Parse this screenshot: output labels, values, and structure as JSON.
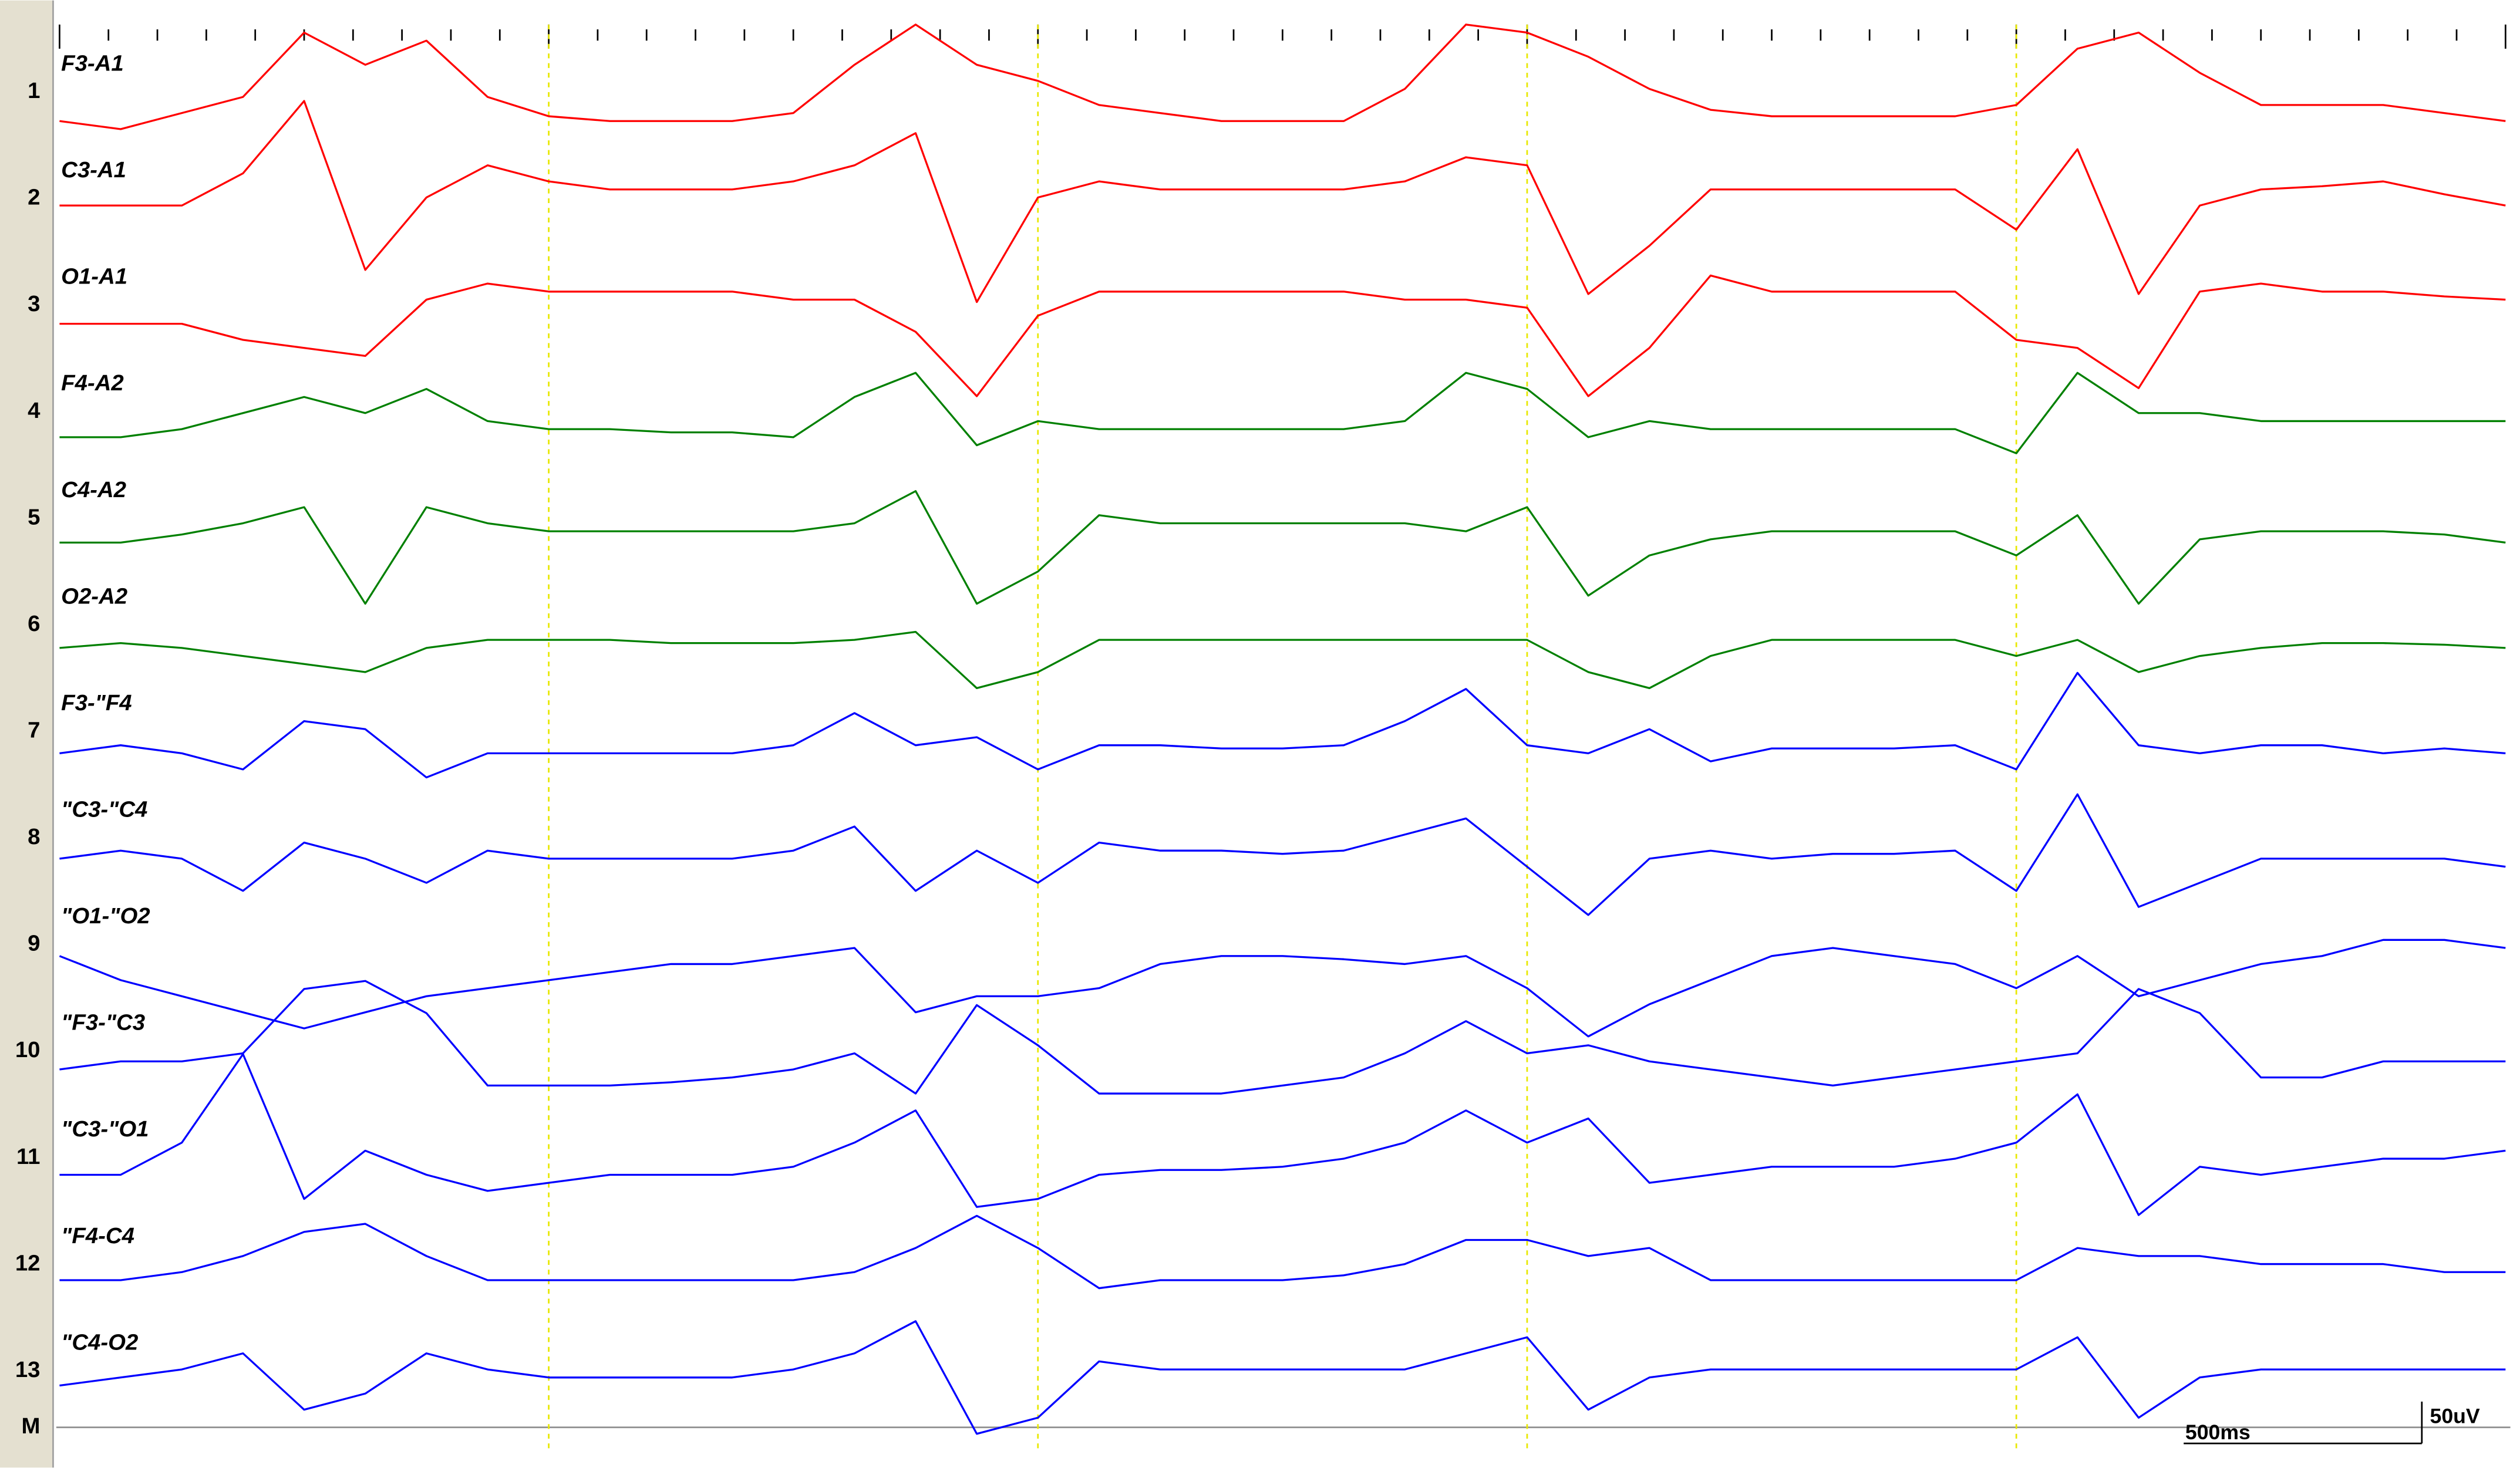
{
  "x": [
    0,
    0.125,
    0.25,
    0.375,
    0.5,
    0.625,
    0.75,
    0.875,
    1,
    1.125,
    1.25,
    1.375,
    1.5,
    1.625,
    1.75,
    1.875,
    2,
    2.125,
    2.25,
    2.375,
    2.5,
    2.625,
    2.75,
    2.875,
    3,
    3.125,
    3.25,
    3.375,
    3.5,
    3.625,
    3.75,
    3.875,
    4,
    4.125,
    4.25,
    4.375,
    4.5,
    4.625,
    4.75,
    4.875,
    5
  ],
  "channels": [
    {
      "number": "1",
      "label": "F3-A1",
      "color": "#ff0000",
      "trace": [
        0,
        -5,
        5,
        15,
        55,
        35,
        50,
        15,
        3,
        0,
        0,
        0,
        5,
        35,
        60,
        35,
        25,
        10,
        5,
        0,
        0,
        0,
        20,
        60,
        55,
        40,
        20,
        7,
        3,
        3,
        3,
        3,
        10,
        45,
        55,
        30,
        10,
        10,
        10,
        5,
        0
      ]
    },
    {
      "number": "2",
      "label": "C3-A1",
      "color": "#ff0000",
      "trace": [
        13,
        13,
        13,
        33,
        78,
        -27,
        18,
        38,
        28,
        23,
        23,
        23,
        28,
        38,
        58,
        -47,
        18,
        28,
        23,
        23,
        23,
        23,
        28,
        43,
        38,
        -42,
        -12,
        23,
        23,
        23,
        23,
        23,
        -2,
        48,
        -42,
        13,
        23,
        25,
        28,
        20,
        13
      ]
    },
    {
      "number": "3",
      "label": "O1-A1",
      "color": "#ff0000",
      "trace": [
        5,
        5,
        5,
        -5,
        -10,
        -15,
        20,
        30,
        25,
        25,
        25,
        25,
        20,
        20,
        0,
        -40,
        10,
        25,
        25,
        25,
        25,
        25,
        20,
        20,
        15,
        -40,
        -10,
        35,
        25,
        25,
        25,
        25,
        -5,
        -10,
        -35,
        25,
        30,
        25,
        25,
        22,
        20
      ]
    },
    {
      "number": "4",
      "label": "F4-A2",
      "color": "#008000",
      "trace": [
        0,
        0,
        5,
        15,
        25,
        15,
        30,
        10,
        5,
        5,
        3,
        3,
        0,
        25,
        40,
        -5,
        10,
        5,
        5,
        5,
        5,
        5,
        10,
        40,
        30,
        0,
        10,
        5,
        5,
        5,
        5,
        5,
        -10,
        40,
        15,
        15,
        10,
        10,
        10,
        10,
        10
      ]
    },
    {
      "number": "5",
      "label": "C4-A2",
      "color": "#008000",
      "trace": [
        0,
        0,
        5,
        12,
        22,
        -38,
        22,
        12,
        7,
        7,
        7,
        7,
        7,
        12,
        32,
        -38,
        -18,
        17,
        12,
        12,
        12,
        12,
        12,
        7,
        22,
        -33,
        -8,
        2,
        7,
        7,
        7,
        7,
        -8,
        17,
        -38,
        2,
        7,
        7,
        7,
        5,
        0
      ]
    },
    {
      "number": "6",
      "label": "O2-A2",
      "color": "#008000",
      "trace": [
        0,
        3,
        0,
        -5,
        -10,
        -15,
        0,
        5,
        5,
        5,
        3,
        3,
        3,
        5,
        10,
        -25,
        -15,
        5,
        5,
        5,
        5,
        5,
        5,
        5,
        5,
        -15,
        -25,
        -5,
        5,
        5,
        5,
        5,
        -5,
        5,
        -15,
        -5,
        0,
        3,
        3,
        2,
        0
      ]
    },
    {
      "number": "7",
      "label": "F3-\"F4",
      "color": "#0000ff",
      "trace": [
        0,
        5,
        0,
        -10,
        20,
        15,
        -15,
        0,
        0,
        0,
        0,
        0,
        5,
        25,
        5,
        10,
        -10,
        5,
        5,
        3,
        3,
        5,
        20,
        40,
        5,
        0,
        15,
        -5,
        3,
        3,
        3,
        5,
        -10,
        50,
        5,
        0,
        5,
        5,
        0,
        3,
        0
      ]
    },
    {
      "number": "8",
      "label": "\"C3-\"C4",
      "color": "#0000ff",
      "trace": [
        0,
        5,
        0,
        -20,
        10,
        0,
        -15,
        5,
        0,
        0,
        0,
        0,
        5,
        20,
        -20,
        5,
        -15,
        10,
        5,
        5,
        3,
        5,
        15,
        25,
        -5,
        -35,
        0,
        5,
        0,
        3,
        3,
        5,
        -20,
        40,
        -30,
        -15,
        0,
        0,
        0,
        0,
        -5
      ]
    },
    {
      "number": "9",
      "label": "\"O1-\"O2",
      "color": "#0000ff",
      "trace": [
        5,
        -10,
        -20,
        -30,
        -40,
        -30,
        -20,
        -15,
        -10,
        -5,
        0,
        0,
        5,
        10,
        -30,
        -20,
        -20,
        -15,
        0,
        5,
        5,
        3,
        0,
        5,
        -15,
        -45,
        -25,
        -10,
        5,
        10,
        5,
        0,
        -15,
        5,
        -20,
        -10,
        0,
        5,
        15,
        15,
        10
      ]
    },
    {
      "number": "10",
      "label": "\"F3-\"C3",
      "color": "#0000ff",
      "trace": [
        0,
        5,
        5,
        10,
        50,
        55,
        35,
        -10,
        -10,
        -10,
        -8,
        -5,
        0,
        10,
        -15,
        40,
        15,
        -15,
        -15,
        -15,
        -10,
        -5,
        10,
        30,
        10,
        15,
        5,
        0,
        -5,
        -10,
        -5,
        0,
        5,
        10,
        50,
        35,
        -5,
        -5,
        5,
        5,
        5
      ]
    },
    {
      "number": "11",
      "label": "\"C3-\"O1",
      "color": "#0000ff",
      "trace": [
        0,
        0,
        20,
        75,
        -15,
        15,
        0,
        -10,
        -5,
        0,
        0,
        0,
        5,
        20,
        40,
        -20,
        -15,
        0,
        3,
        3,
        5,
        10,
        20,
        40,
        20,
        35,
        -5,
        0,
        5,
        5,
        5,
        10,
        20,
        50,
        -25,
        5,
        0,
        5,
        10,
        10,
        15
      ]
    },
    {
      "number": "12",
      "label": "\"F4-C4",
      "color": "#0000ff",
      "trace": [
        0,
        0,
        5,
        15,
        30,
        35,
        15,
        0,
        0,
        0,
        0,
        0,
        0,
        5,
        20,
        40,
        20,
        -5,
        0,
        0,
        0,
        3,
        10,
        25,
        25,
        15,
        20,
        0,
        0,
        0,
        0,
        0,
        0,
        20,
        15,
        15,
        10,
        10,
        10,
        5,
        5
      ]
    },
    {
      "number": "13",
      "label": "\"C4-O2",
      "color": "#0000ff",
      "trace": [
        0,
        5,
        10,
        20,
        -15,
        -5,
        20,
        10,
        5,
        5,
        5,
        5,
        10,
        20,
        40,
        -30,
        -20,
        15,
        10,
        10,
        10,
        10,
        10,
        20,
        30,
        -15,
        5,
        10,
        10,
        10,
        10,
        10,
        10,
        30,
        -20,
        5,
        10,
        10,
        10,
        10,
        10
      ]
    }
  ],
  "marker_row": "M",
  "time_scale": "500ms",
  "amplitude_scale": "50uV"
}
